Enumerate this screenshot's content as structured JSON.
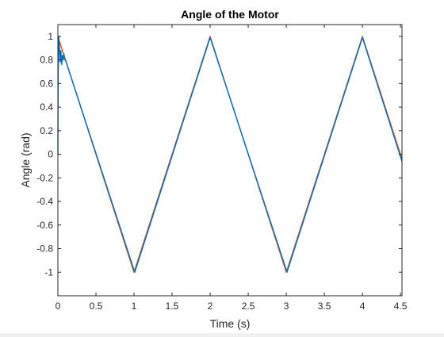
{
  "chart_data": {
    "type": "line",
    "title": "Angle of the Motor",
    "xlabel": "Time (s)",
    "ylabel": "Angle (rad)",
    "xlim": [
      0,
      4.52
    ],
    "ylim": [
      -1.2,
      1.1
    ],
    "xticks": [
      0,
      0.5,
      1,
      1.5,
      2,
      2.5,
      3,
      3.5,
      4,
      4.5
    ],
    "xtick_labels": [
      "0",
      "0.5",
      "1",
      "1.5",
      "2",
      "2.5",
      "3",
      "3.5",
      "4",
      "4.5"
    ],
    "yticks": [
      1,
      0.8,
      0.6,
      0.4,
      0.2,
      0,
      -0.2,
      -0.4,
      -0.6,
      -0.8,
      -1
    ],
    "ytick_labels": [
      "1",
      "0.8",
      "0.6",
      "0.4",
      "0.2",
      "0",
      "-0.2",
      "-0.4",
      "-0.6",
      "-0.8",
      "-1"
    ],
    "grid": false,
    "legend": "none",
    "series": [
      {
        "color": "#d95319",
        "x": [
          0,
          1,
          2,
          3,
          4,
          4.52
        ],
        "y": [
          1,
          -1,
          1,
          -1,
          1,
          -0.04
        ]
      },
      {
        "color": "#0072bd",
        "x": [
          0,
          0.004,
          0.012,
          0.02,
          0.03,
          0.04,
          0.05,
          0.06,
          0.07,
          0.08,
          0.09,
          0.1,
          1,
          1.01,
          2,
          3,
          3.01,
          4,
          4.52
        ],
        "y": [
          0,
          0.7,
          1.0,
          0.92,
          0.78,
          0.88,
          0.76,
          0.84,
          0.8,
          0.85,
          0.8,
          0.8,
          -0.98,
          -1.0,
          0.99,
          -0.98,
          -1.0,
          0.99,
          -0.06
        ]
      }
    ]
  }
}
